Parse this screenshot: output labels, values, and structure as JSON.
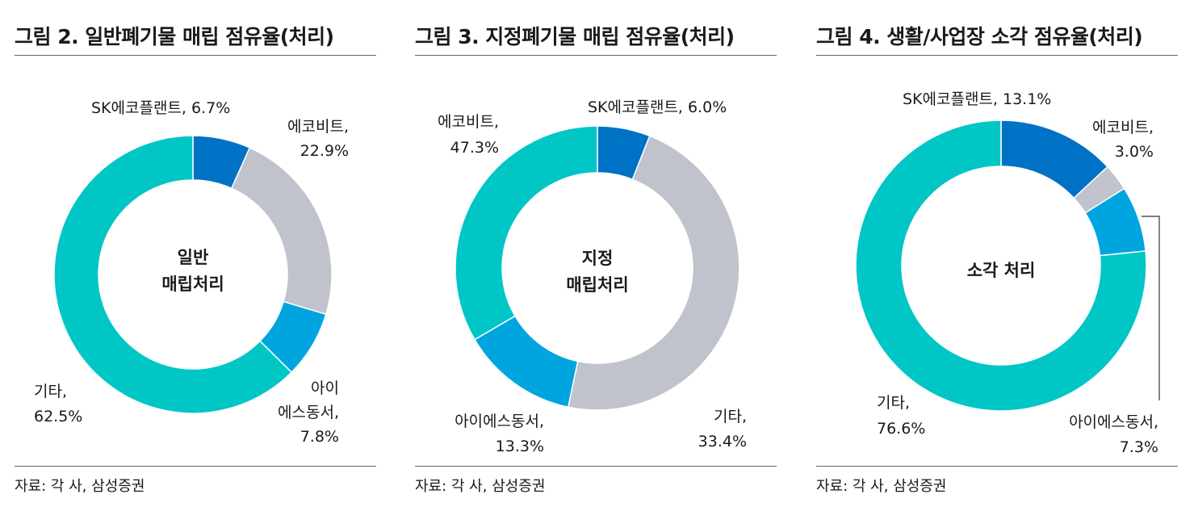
{
  "chart_data": [
    {
      "type": "pie",
      "title": "그림 2. 일반폐기물 매립 점유율(처리)",
      "center_label": [
        "일반",
        "매립처리"
      ],
      "source": "자료: 각 사, 삼성증권",
      "slices": [
        {
          "name": "SK에코플랜트",
          "value": 6.7,
          "color": "#0072c6",
          "label": [
            "SK에코플랜트, 6.7%"
          ]
        },
        {
          "name": "에코비트",
          "value": 22.9,
          "color": "#c0c2cc",
          "label": [
            "에코비트,",
            "22.9%"
          ]
        },
        {
          "name": "아이에스동서",
          "value": 7.8,
          "color": "#00a5e0",
          "label": [
            "아이",
            "에스동서,",
            "7.8%"
          ]
        },
        {
          "name": "기타",
          "value": 62.5,
          "color": "#00c6c6",
          "label": [
            "기타,",
            "62.5%"
          ]
        }
      ]
    },
    {
      "type": "pie",
      "title": "그림 3. 지정폐기물 매립 점유율(처리)",
      "center_label": [
        "지정",
        "매립처리"
      ],
      "source": "자료: 각 사, 삼성증권",
      "slices": [
        {
          "name": "SK에코플랜트",
          "value": 6.0,
          "color": "#0072c6",
          "label": [
            "SK에코플랜트, 6.0%"
          ]
        },
        {
          "name": "에코비트",
          "value": 47.3,
          "color": "#c0c2cc",
          "label": [
            "에코비트,",
            "47.3%"
          ]
        },
        {
          "name": "아이에스동서",
          "value": 13.3,
          "color": "#00a5e0",
          "label": [
            "아이에스동서,",
            "13.3%"
          ]
        },
        {
          "name": "기타",
          "value": 33.4,
          "color": "#00c6c6",
          "label": [
            "기타,",
            "33.4%"
          ]
        }
      ]
    },
    {
      "type": "pie",
      "title": "그림 4. 생활/사업장 소각 점유율(처리)",
      "center_label": [
        "소각 처리"
      ],
      "source": "자료: 각 사, 삼성증권",
      "slices": [
        {
          "name": "SK에코플랜트",
          "value": 13.1,
          "color": "#0072c6",
          "label": [
            "SK에코플랜트, 13.1%"
          ]
        },
        {
          "name": "에코비트",
          "value": 3.0,
          "color": "#c0c2cc",
          "label": [
            "에코비트,",
            "3.0%"
          ]
        },
        {
          "name": "아이에스동서",
          "value": 7.3,
          "color": "#00a5e0",
          "label": [
            "아이에스동서,",
            "7.3%"
          ]
        },
        {
          "name": "기타",
          "value": 76.6,
          "color": "#00c6c6",
          "label": [
            "기타,",
            "76.6%"
          ]
        }
      ]
    }
  ]
}
